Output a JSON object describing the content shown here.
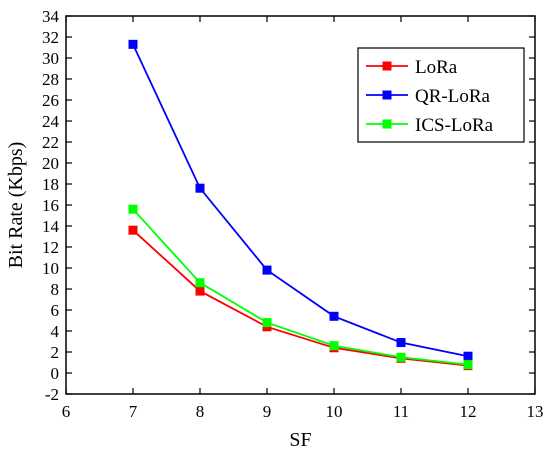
{
  "chart_data": {
    "type": "line",
    "xlabel": "SF",
    "ylabel": "Bit Rate (Kbps)",
    "xlim": [
      6,
      13
    ],
    "ylim": [
      -2,
      34
    ],
    "xticks": [
      6,
      7,
      8,
      9,
      10,
      11,
      12,
      13
    ],
    "yticks": [
      -2,
      0,
      2,
      4,
      6,
      8,
      10,
      12,
      14,
      16,
      18,
      20,
      22,
      24,
      26,
      28,
      30,
      32,
      34
    ],
    "grid": false,
    "legend_position": "top-right",
    "x": [
      7,
      8,
      9,
      10,
      11,
      12
    ],
    "series": [
      {
        "name": "LoRa",
        "color": "#ff0000",
        "values": [
          13.6,
          7.8,
          4.4,
          2.4,
          1.4,
          0.7
        ]
      },
      {
        "name": "QR-LoRa",
        "color": "#0000ff",
        "values": [
          31.3,
          17.6,
          9.8,
          5.4,
          2.9,
          1.6
        ]
      },
      {
        "name": "ICS-LoRa",
        "color": "#00ff00",
        "values": [
          15.6,
          8.6,
          4.8,
          2.6,
          1.5,
          0.8
        ]
      }
    ]
  }
}
